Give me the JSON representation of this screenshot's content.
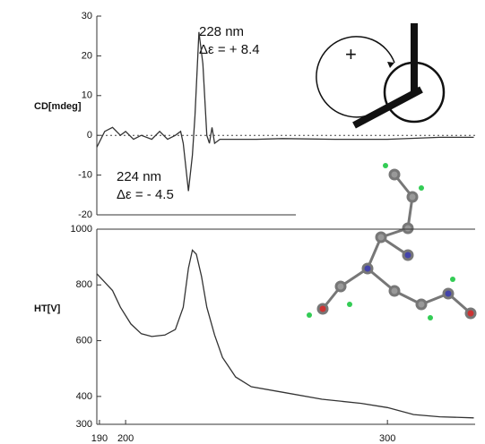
{
  "chart_data": [
    {
      "type": "line",
      "ylabel": "CD[mdeg]",
      "ylim": [
        -20,
        30
      ],
      "yticks": [
        -20,
        -10,
        0,
        10,
        20,
        30
      ],
      "xlim": [
        189,
        333.5
      ],
      "x": [
        189,
        192,
        195,
        198,
        200,
        203,
        206,
        210,
        213,
        216,
        219,
        221,
        222,
        224,
        225.5,
        226.5,
        228,
        229.5,
        231,
        232,
        233,
        234,
        236,
        240,
        250,
        260,
        280,
        300,
        320,
        333
      ],
      "series": [
        {
          "name": "CD",
          "color": "#333333",
          "values": [
            -3,
            1,
            2,
            0,
            1,
            -1,
            0,
            -1,
            1,
            -1,
            0,
            1,
            -2,
            -14,
            -5,
            5,
            26,
            18,
            0,
            -2,
            2,
            -2,
            -1,
            -1,
            -1,
            -0.8,
            -1,
            -1,
            -0.5,
            -0.5
          ]
        }
      ],
      "zero_line": 0,
      "annotations": [
        "228 nm",
        "Δε = + 8.4",
        "224 nm",
        "Δε = - 4.5"
      ]
    },
    {
      "type": "line",
      "ylabel": "HT[V]",
      "ylim": [
        300,
        1000
      ],
      "yticks": [
        300,
        400,
        600,
        800,
        1000
      ],
      "xlim": [
        189,
        333.5
      ],
      "xticks": [
        190,
        200,
        300
      ],
      "x": [
        189,
        192,
        195,
        198,
        202,
        206,
        210,
        215,
        219,
        222,
        224,
        225.5,
        227,
        229,
        231,
        234,
        237,
        242,
        248,
        260,
        275,
        290,
        300,
        310,
        320,
        333
      ],
      "series": [
        {
          "name": "HT",
          "color": "#333333",
          "values": [
            840,
            810,
            780,
            720,
            660,
            625,
            615,
            620,
            640,
            720,
            860,
            925,
            910,
            830,
            720,
            620,
            540,
            470,
            435,
            415,
            390,
            375,
            360,
            335,
            327,
            323
          ]
        }
      ]
    }
  ],
  "diagram": {
    "sign": "+"
  }
}
